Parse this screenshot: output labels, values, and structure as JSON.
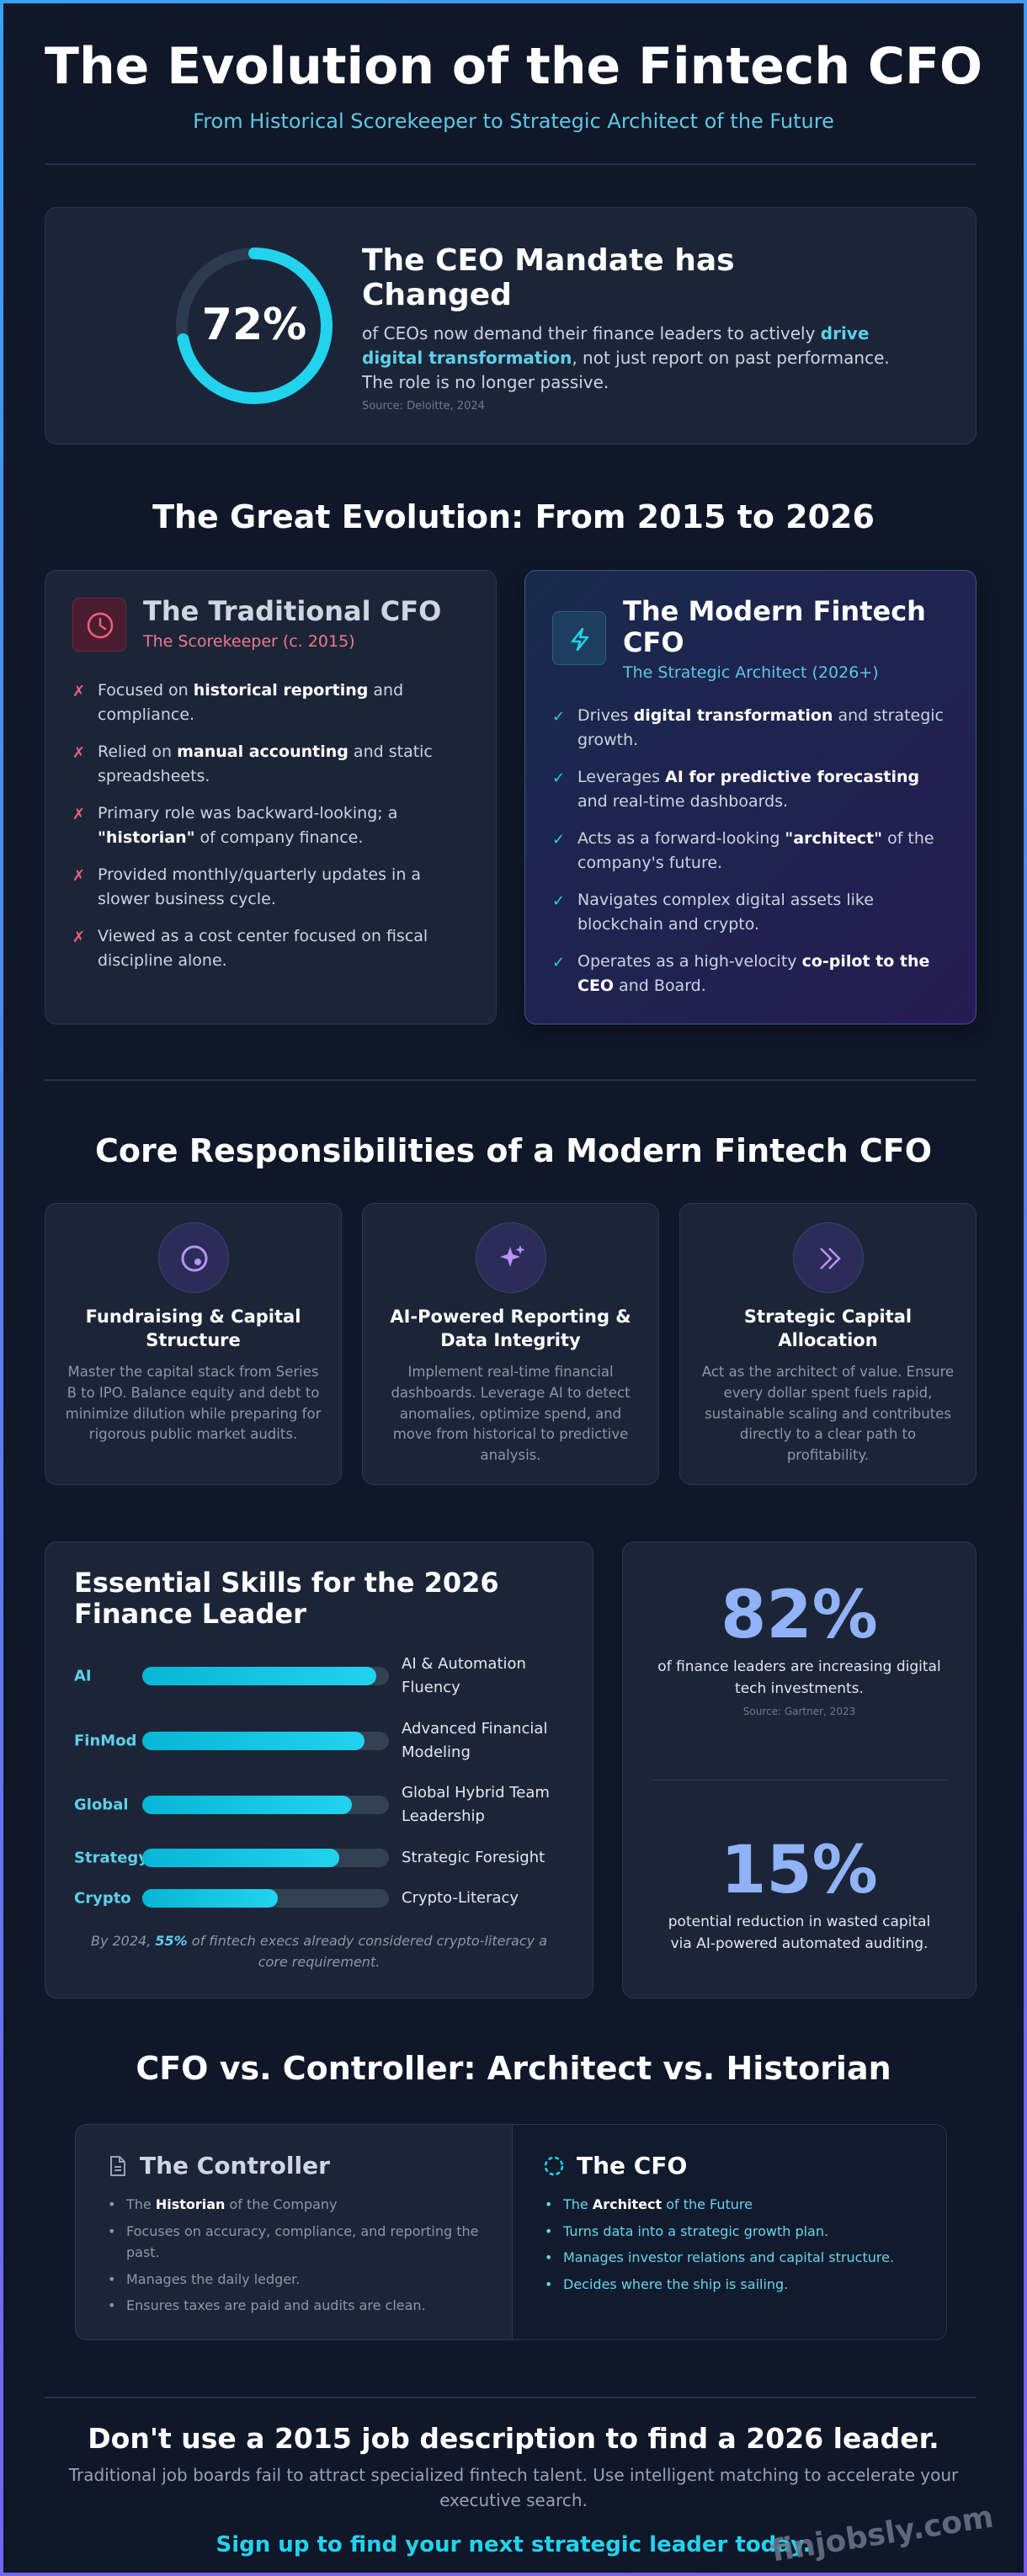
{
  "header": {
    "title": "The Evolution of the Fintech CFO",
    "subtitle": "From Historical Scorekeeper to Strategic Architect of the Future"
  },
  "mandate": {
    "value": 72,
    "value_label": "72%",
    "heading": "The CEO Mandate has Changed",
    "body": {
      "text": "of CEOs now demand their finance leaders to actively ",
      "strong": "drive digital transformation",
      "after": ", not just report on past performance. The role is no longer passive."
    },
    "source": "Source: Deloitte, 2024"
  },
  "evolution": {
    "title": "The Great Evolution: From 2015 to 2026",
    "traditional": {
      "title": "The Traditional CFO",
      "subtitle": "The Scorekeeper (c. 2015)",
      "marker": "✗",
      "items": [
        {
          "text": "Focused on ",
          "strong": "historical reporting",
          "after": " and compliance."
        },
        {
          "text": "Relied on ",
          "strong": "manual accounting",
          "after": " and static spreadsheets."
        },
        {
          "text": "Primary role was backward-looking; a ",
          "strong": "\"historian\"",
          "after": " of company finance."
        },
        {
          "text": "Provided monthly/quarterly updates in a slower business cycle."
        },
        {
          "text": "Viewed as a cost center focused on fiscal discipline alone."
        }
      ]
    },
    "modern": {
      "title": "The Modern Fintech CFO",
      "subtitle": "The Strategic Architect (2026+)",
      "marker": "✓",
      "items": [
        {
          "text": "Drives ",
          "strong": "digital transformation",
          "after": " and strategic growth."
        },
        {
          "text": "Leverages ",
          "strong": "AI for predictive forecasting",
          "after": " and real-time dashboards."
        },
        {
          "text": "Acts as a forward-looking ",
          "strong": "\"architect\"",
          "after": " of the company's future."
        },
        {
          "text": "Navigates complex digital assets like blockchain and crypto."
        },
        {
          "text": "Operates as a high-velocity ",
          "strong": "co-pilot to the CEO",
          "after": " and Board."
        }
      ]
    }
  },
  "responsibilities": {
    "title": "Core Responsibilities of a Modern Fintech CFO",
    "cards": [
      {
        "title": "Fundraising & Capital Structure",
        "text": "Master the capital stack from Series B to IPO. Balance equity and debt to minimize dilution while preparing for rigorous public market audits."
      },
      {
        "title": "AI-Powered Reporting & Data Integrity",
        "text": "Implement real-time financial dashboards. Leverage AI to detect anomalies, optimize spend, and move from historical to predictive analysis."
      },
      {
        "title": "Strategic Capital Allocation",
        "text": "Act as the architect of value. Ensure every dollar spent fuels rapid, sustainable scaling and contributes directly to a clear path to profitability."
      }
    ]
  },
  "skills": {
    "title": "Essential Skills for the 2026 Finance Leader",
    "xlim": [
      0,
      100
    ],
    "items": [
      {
        "tag": "AI",
        "label": "AI & Automation Fluency",
        "value": 95
      },
      {
        "tag": "FinMod",
        "label": "Advanced Financial Modeling",
        "value": 90
      },
      {
        "tag": "Global",
        "label": "Global Hybrid Team Leadership",
        "value": 85
      },
      {
        "tag": "Strategy",
        "label": "Strategic Foresight",
        "value": 80
      },
      {
        "tag": "Crypto",
        "label": "Crypto-Literacy",
        "value": 55
      }
    ],
    "footnote": {
      "text": "By 2024, ",
      "strong": "55%",
      "after": " of fintech execs already considered crypto-literacy a core requirement."
    }
  },
  "stats": [
    {
      "figure": "82%",
      "text": "of finance leaders are increasing digital tech investments.",
      "source": "Source: Gartner, 2023"
    },
    {
      "figure": "15%",
      "text": "potential reduction in wasted capital via AI-powered automated auditing."
    }
  ],
  "comparison": {
    "title": "CFO vs. Controller: Architect vs. Historian",
    "controller": {
      "title": "The Controller",
      "items": [
        {
          "text": "The ",
          "strong": "Historian",
          "after": " of the Company"
        },
        {
          "text": "Focuses on accuracy, compliance, and reporting the past."
        },
        {
          "text": "Manages the daily ledger."
        },
        {
          "text": "Ensures taxes are paid and audits are clean."
        }
      ]
    },
    "cfo": {
      "title": "The CFO",
      "items": [
        {
          "text": "The ",
          "strong": "Architect",
          "after": " of the Future"
        },
        {
          "text": "Turns data into a strategic growth plan."
        },
        {
          "text": "Manages investor relations and capital structure."
        },
        {
          "text": "Decides where the ship is sailing."
        }
      ]
    }
  },
  "cta": {
    "heading": "Don't use a 2015 job description to find a 2026 leader.",
    "text": "Traditional job boards fail to attract specialized fintech talent. Use intelligent matching to accelerate your executive search.",
    "link": "Sign up to find your next strategic leader today.",
    "watermark": "finjobsly.com"
  }
}
